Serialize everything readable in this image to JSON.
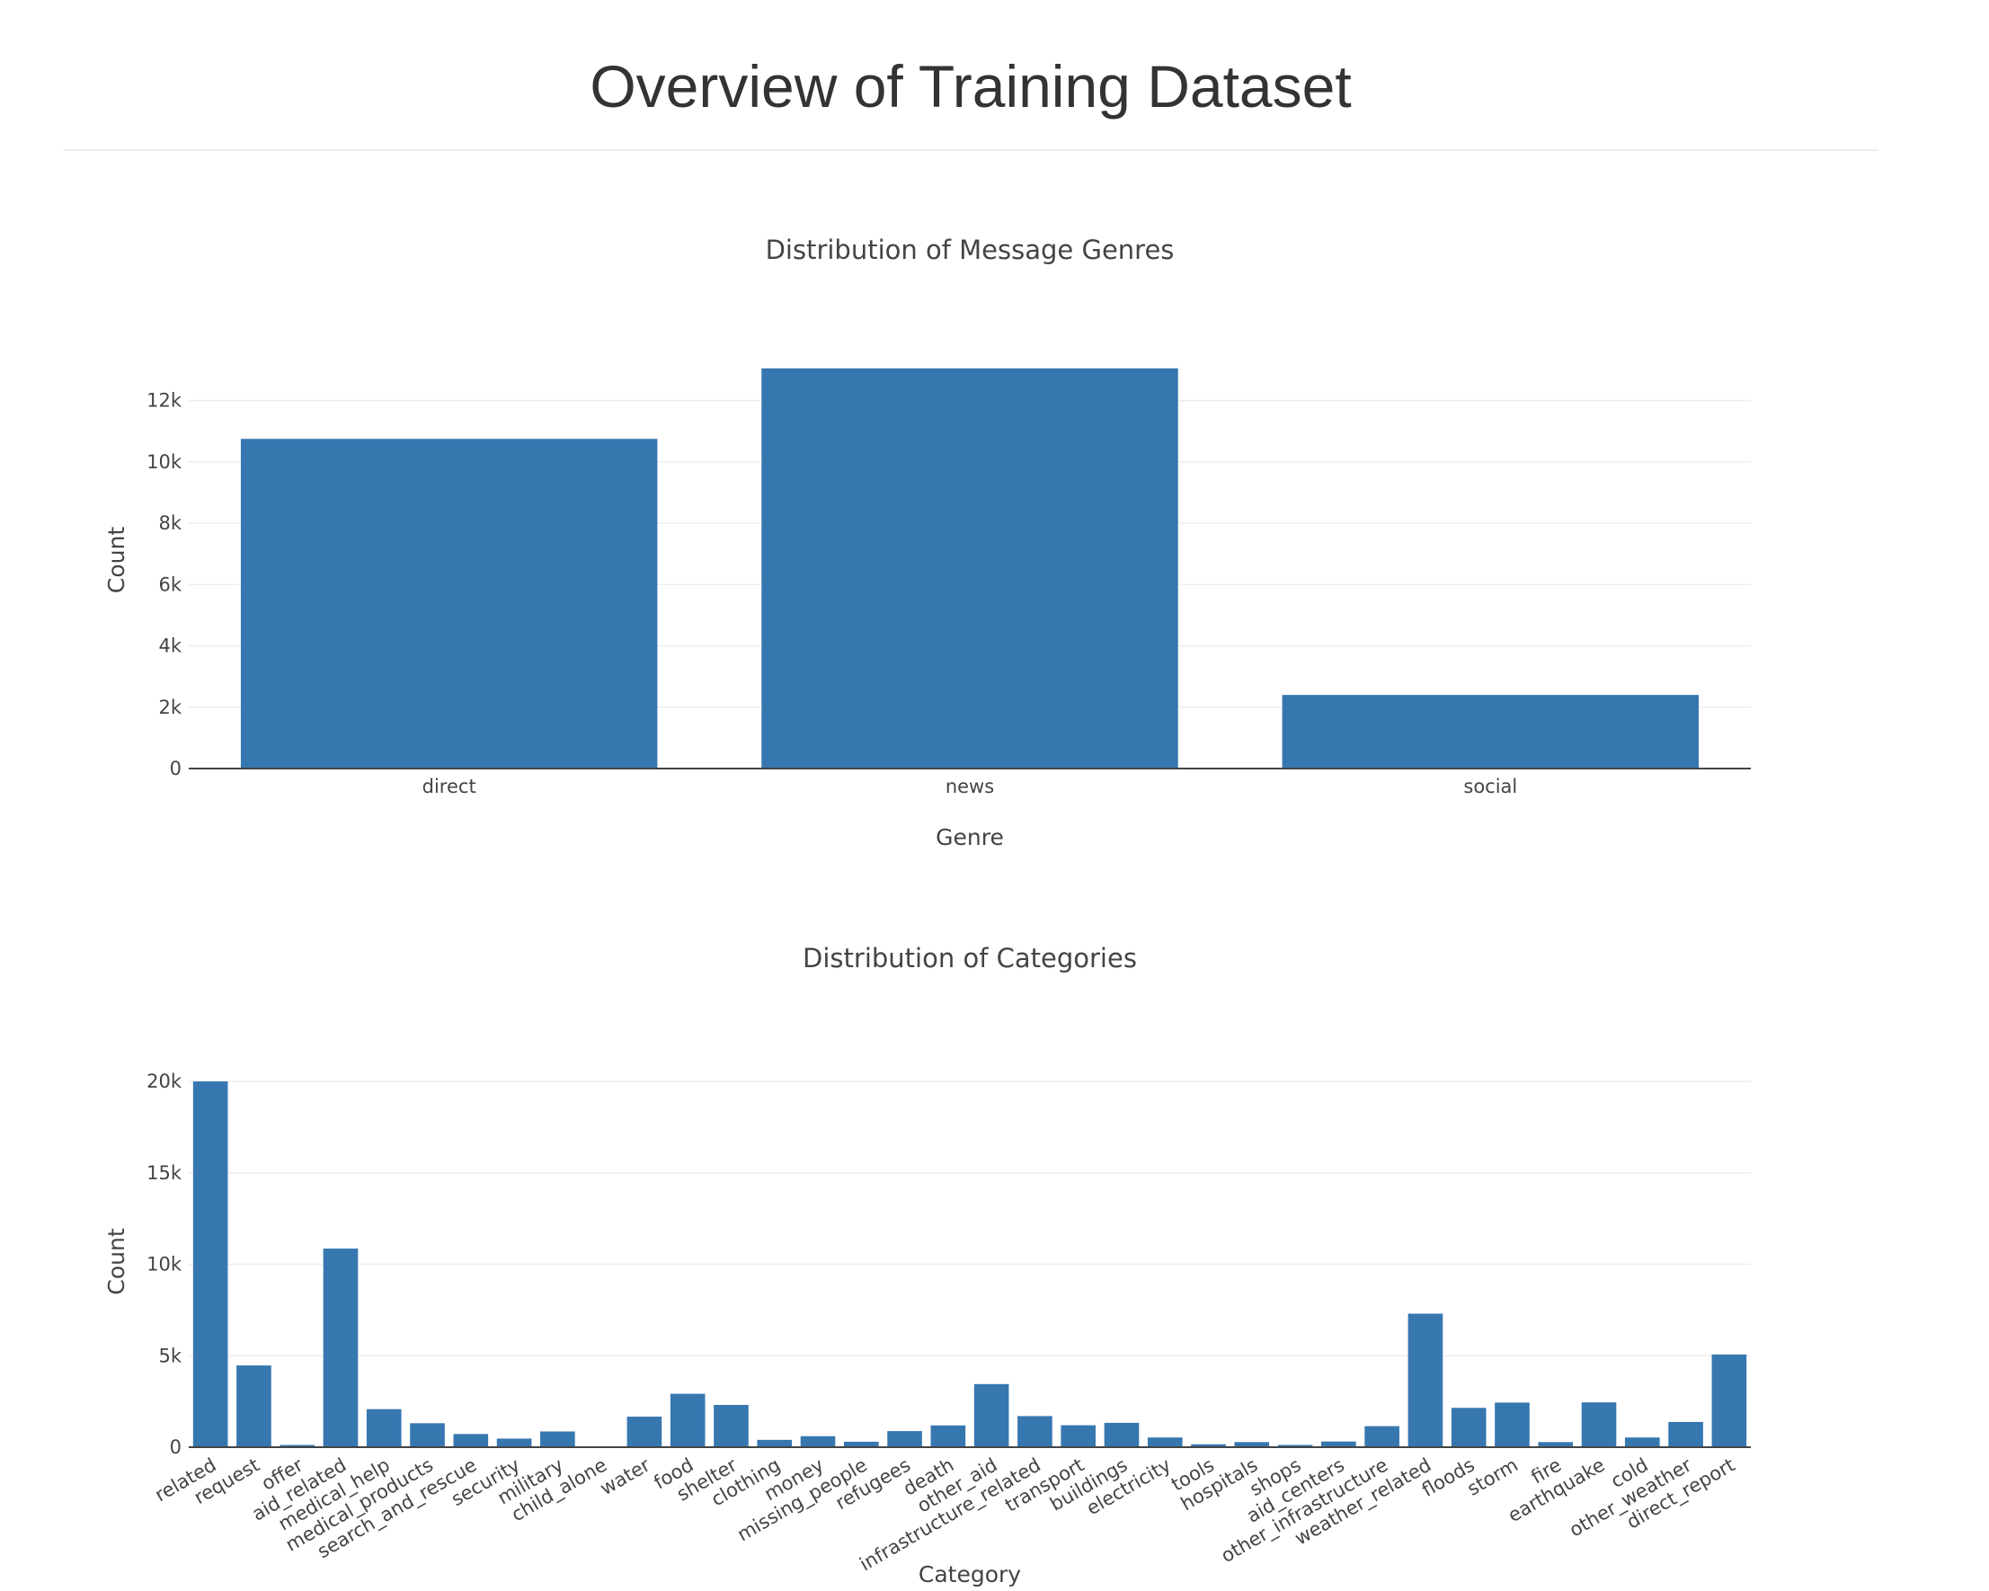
{
  "page": {
    "title": "Overview of Training Dataset"
  },
  "colors": {
    "bar": "#3777b0",
    "grid": "#eeeeee",
    "axis_line": "#444444",
    "text": "#444444"
  },
  "chart_data": [
    {
      "id": "genres",
      "type": "bar",
      "title": "Distribution of Message Genres",
      "xlabel": "Genre",
      "ylabel": "Count",
      "categories": [
        "direct",
        "news",
        "social"
      ],
      "values": [
        10750,
        13050,
        2400
      ],
      "ylim": [
        0,
        13600
      ],
      "yticks": [
        0,
        2000,
        4000,
        6000,
        8000,
        10000,
        12000
      ],
      "ytick_labels": [
        "0",
        "2k",
        "4k",
        "6k",
        "8k",
        "10k",
        "12k"
      ],
      "grid": true,
      "legend": "none"
    },
    {
      "id": "categories",
      "type": "bar",
      "title": "Distribution of Categories",
      "xlabel": "Category",
      "ylabel": "Count",
      "categories": [
        "related",
        "request",
        "offer",
        "aid_related",
        "medical_help",
        "medical_products",
        "search_and_rescue",
        "security",
        "military",
        "child_alone",
        "water",
        "food",
        "shelter",
        "clothing",
        "money",
        "missing_people",
        "refugees",
        "death",
        "other_aid",
        "infrastructure_related",
        "transport",
        "buildings",
        "electricity",
        "tools",
        "hospitals",
        "shops",
        "aid_centers",
        "other_infrastructure",
        "weather_related",
        "floods",
        "storm",
        "fire",
        "earthquake",
        "cold",
        "other_weather",
        "direct_report"
      ],
      "values": [
        20000,
        4470,
        120,
        10860,
        2080,
        1310,
        720,
        470,
        860,
        0,
        1670,
        2920,
        2310,
        400,
        600,
        300,
        880,
        1190,
        3450,
        1700,
        1200,
        1330,
        530,
        160,
        280,
        120,
        310,
        1150,
        7300,
        2150,
        2440,
        280,
        2450,
        530,
        1380,
        5070
      ],
      "ylim": [
        0,
        20300
      ],
      "yticks": [
        0,
        5000,
        10000,
        15000,
        20000
      ],
      "ytick_labels": [
        "0",
        "5k",
        "10k",
        "15k",
        "20k"
      ],
      "grid": true,
      "legend": "none"
    }
  ]
}
